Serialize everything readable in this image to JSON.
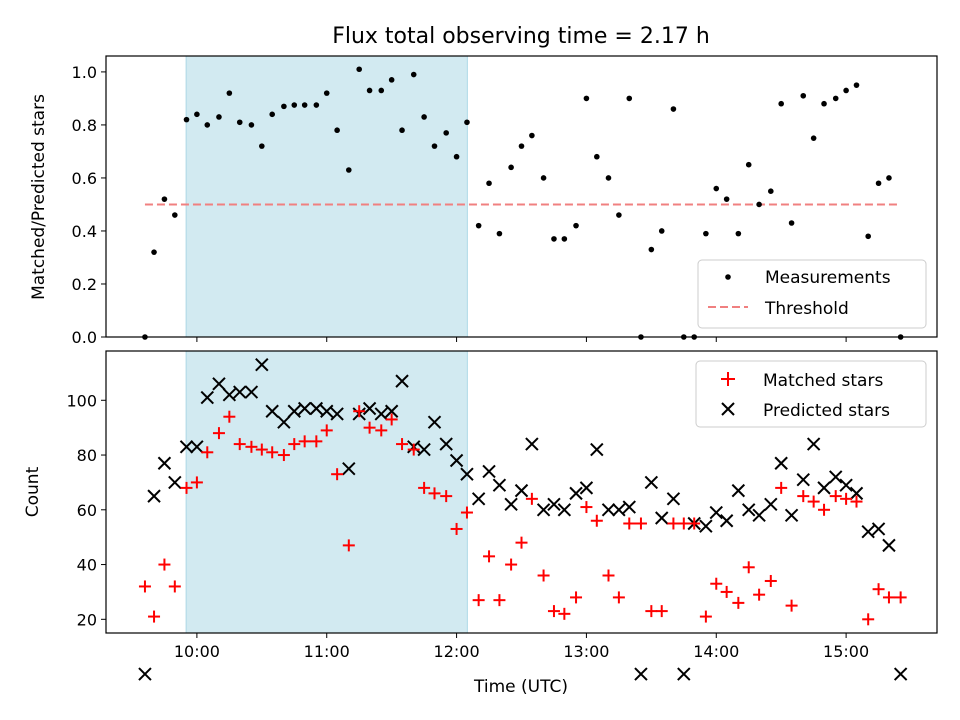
{
  "title": "Flux total observing time = 2.17 h",
  "colors": {
    "shade": "#add8e6",
    "measurement": "#000000",
    "threshold": "#f08080",
    "matched": "#ff0000",
    "predicted": "#000000"
  },
  "chart_data": [
    {
      "type": "scatter",
      "name": "ratio",
      "ylabel": "Matched/Predicted stars",
      "ylim": [
        0,
        1.06
      ],
      "xlim": [
        9.3,
        15.7
      ],
      "yticks": [
        "0.0",
        "0.2",
        "0.4",
        "0.6",
        "0.8",
        "1.0"
      ],
      "ytick_values": [
        0,
        0.2,
        0.4,
        0.6,
        0.8,
        1.0
      ],
      "shaded_range": [
        9.917,
        12.083
      ],
      "threshold": {
        "value": 0.5,
        "x_range": [
          9.6,
          15.42
        ]
      },
      "legend": {
        "placement": "lower-right",
        "entries": [
          "Measurements",
          "Threshold"
        ]
      },
      "measurements": {
        "x": [
          9.6,
          9.67,
          9.75,
          9.83,
          9.92,
          10,
          10.08,
          10.17,
          10.25,
          10.33,
          10.42,
          10.5,
          10.58,
          10.67,
          10.75,
          10.83,
          10.92,
          11,
          11.08,
          11.17,
          11.25,
          11.33,
          11.42,
          11.5,
          11.58,
          11.67,
          11.75,
          11.83,
          11.92,
          12,
          12.08,
          12.17,
          12.25,
          12.33,
          12.42,
          12.5,
          12.58,
          12.67,
          12.75,
          12.83,
          12.92,
          13,
          13.08,
          13.17,
          13.25,
          13.33,
          13.42,
          13.5,
          13.58,
          13.67,
          13.75,
          13.83,
          13.92,
          14,
          14.08,
          14.17,
          14.25,
          14.33,
          14.42,
          14.5,
          14.58,
          14.67,
          14.75,
          14.83,
          14.92,
          15,
          15.08,
          15.17,
          15.25,
          15.33,
          15.42
        ],
        "y": [
          0.0,
          0.32,
          0.52,
          0.46,
          0.82,
          0.84,
          0.8,
          0.83,
          0.92,
          0.81,
          0.8,
          0.72,
          0.84,
          0.87,
          0.875,
          0.875,
          0.875,
          0.92,
          0.78,
          0.63,
          1.01,
          0.93,
          0.93,
          0.97,
          0.78,
          0.99,
          0.83,
          0.72,
          0.77,
          0.68,
          0.81,
          0.42,
          0.58,
          0.39,
          0.64,
          0.72,
          0.76,
          0.6,
          0.37,
          0.37,
          0.42,
          0.9,
          0.68,
          0.6,
          0.46,
          0.9,
          0.0,
          0.33,
          0.4,
          0.86,
          0.0,
          0.0,
          0.39,
          0.56,
          0.52,
          0.39,
          0.65,
          0.5,
          0.55,
          0.88,
          0.43,
          0.91,
          0.75,
          0.88,
          0.9,
          0.93,
          0.95,
          0.38,
          0.58,
          0.6,
          0.0
        ]
      }
    },
    {
      "type": "scatter",
      "name": "counts",
      "ylabel": "Count",
      "xlabel": "Time (UTC)",
      "ylim": [
        15,
        118
      ],
      "xlim": [
        9.3,
        15.7
      ],
      "yticks": [
        "20",
        "40",
        "60",
        "80",
        "100"
      ],
      "ytick_values": [
        20,
        40,
        60,
        80,
        100
      ],
      "xticks": [
        "10:00",
        "11:00",
        "12:00",
        "13:00",
        "14:00",
        "15:00"
      ],
      "xtick_values": [
        10,
        11,
        12,
        13,
        14,
        15
      ],
      "shaded_range": [
        9.917,
        12.083
      ],
      "legend": {
        "placement": "top-right",
        "entries": [
          "Matched stars",
          "Predicted stars"
        ]
      },
      "x": [
        9.6,
        9.67,
        9.75,
        9.83,
        9.92,
        10,
        10.08,
        10.17,
        10.25,
        10.33,
        10.42,
        10.5,
        10.58,
        10.67,
        10.75,
        10.83,
        10.92,
        11,
        11.08,
        11.17,
        11.25,
        11.33,
        11.42,
        11.5,
        11.58,
        11.67,
        11.75,
        11.83,
        11.92,
        12,
        12.08,
        12.17,
        12.25,
        12.33,
        12.42,
        12.5,
        12.58,
        12.67,
        12.75,
        12.83,
        12.92,
        13,
        13.08,
        13.17,
        13.25,
        13.33,
        13.42,
        13.5,
        13.58,
        13.67,
        13.75,
        13.83,
        13.92,
        14,
        14.08,
        14.17,
        14.25,
        14.33,
        14.42,
        14.5,
        14.58,
        14.67,
        14.75,
        14.83,
        14.92,
        15,
        15.08,
        15.17,
        15.25,
        15.33,
        15.42
      ],
      "matched": [
        32,
        21,
        40,
        32,
        68,
        70,
        81,
        88,
        94,
        84,
        83,
        82,
        81,
        80,
        84,
        85,
        85,
        89,
        73,
        47,
        96,
        90,
        89,
        93,
        84,
        82,
        68,
        66,
        65,
        53,
        59,
        27,
        43,
        27,
        40,
        48,
        64,
        36,
        23,
        22,
        28,
        61,
        56,
        36,
        28,
        55,
        55,
        23,
        23,
        55,
        55,
        55,
        21,
        33,
        30,
        26,
        39,
        29,
        34,
        68,
        25,
        65,
        63,
        60,
        65,
        64,
        63,
        20,
        31,
        28,
        28
      ],
      "predicted": [
        0,
        65,
        77,
        70,
        83,
        83,
        101,
        106,
        102,
        103,
        103,
        113,
        96,
        92,
        96,
        97,
        97,
        96,
        95,
        75,
        95,
        97,
        95,
        96,
        107,
        83,
        82,
        92,
        84,
        78,
        73,
        64,
        74,
        69,
        62,
        67,
        84,
        60,
        62,
        60,
        66,
        68,
        82,
        60,
        60,
        61,
        0,
        70,
        57,
        64,
        0,
        55,
        54,
        59,
        56,
        67,
        60,
        58,
        62,
        77,
        58,
        71,
        84,
        68,
        72,
        69,
        66,
        52,
        53,
        47,
        0
      ]
    }
  ]
}
